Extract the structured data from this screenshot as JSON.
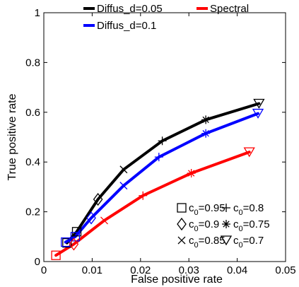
{
  "chart_data": {
    "type": "line",
    "xlabel": "False positive rate",
    "ylabel": "True positive rate",
    "xlim": [
      0,
      0.05
    ],
    "ylim": [
      0,
      1
    ],
    "xticks": [
      "0",
      "0.01",
      "0.02",
      "0.03",
      "0.04",
      "0.05"
    ],
    "xtick_values": [
      0,
      0.01,
      0.02,
      0.03,
      0.04,
      0.05
    ],
    "yticks": [
      "0",
      "0.2",
      "0.4",
      "0.6",
      "0.8",
      "1"
    ],
    "ytick_values": [
      0,
      0.2,
      0.4,
      0.6,
      0.8,
      1
    ],
    "grid": false,
    "series": [
      {
        "name": "Diffus_d=0.05",
        "color": "#000000",
        "points": [
          {
            "x": 0.0048,
            "y": 0.075
          },
          {
            "x": 0.0068,
            "y": 0.12
          },
          {
            "x": 0.0112,
            "y": 0.25
          },
          {
            "x": 0.0165,
            "y": 0.37
          },
          {
            "x": 0.0245,
            "y": 0.485
          },
          {
            "x": 0.0335,
            "y": 0.57
          },
          {
            "x": 0.0445,
            "y": 0.635
          }
        ]
      },
      {
        "name": "Diffus_d=0.1",
        "color": "#0000ff",
        "points": [
          {
            "x": 0.0045,
            "y": 0.078
          },
          {
            "x": 0.0065,
            "y": 0.1
          },
          {
            "x": 0.0098,
            "y": 0.175
          },
          {
            "x": 0.0165,
            "y": 0.305
          },
          {
            "x": 0.0238,
            "y": 0.42
          },
          {
            "x": 0.0335,
            "y": 0.515
          },
          {
            "x": 0.0443,
            "y": 0.595
          }
        ]
      },
      {
        "name": "Spectral",
        "color": "#ff0000",
        "points": [
          {
            "x": 0.0025,
            "y": 0.025
          },
          {
            "x": 0.0062,
            "y": 0.07
          },
          {
            "x": 0.0125,
            "y": 0.165
          },
          {
            "x": 0.0205,
            "y": 0.265
          },
          {
            "x": 0.0305,
            "y": 0.355
          },
          {
            "x": 0.0425,
            "y": 0.44
          }
        ]
      }
    ],
    "markers": [
      {
        "symbol": "square",
        "label": "c",
        "sub": "0",
        "value": "=0.95"
      },
      {
        "symbol": "diamond",
        "label": "c",
        "sub": "0",
        "value": "=0.9"
      },
      {
        "symbol": "x",
        "label": "c",
        "sub": "0",
        "value": "=0.85"
      },
      {
        "symbol": "plus",
        "label": "c",
        "sub": "0",
        "value": "=0.8"
      },
      {
        "symbol": "asterisk",
        "label": "c",
        "sub": "0",
        "value": "=0.75"
      },
      {
        "symbol": "triangle-down",
        "label": "c",
        "sub": "0",
        "value": "=0.7"
      }
    ],
    "point_markers": [
      "square",
      "diamond",
      "x",
      "plus",
      "asterisk",
      "triangle-down"
    ],
    "spectral_point_markers": [
      "square",
      "diamond",
      "x",
      "plus",
      "asterisk",
      "triangle-down"
    ]
  }
}
